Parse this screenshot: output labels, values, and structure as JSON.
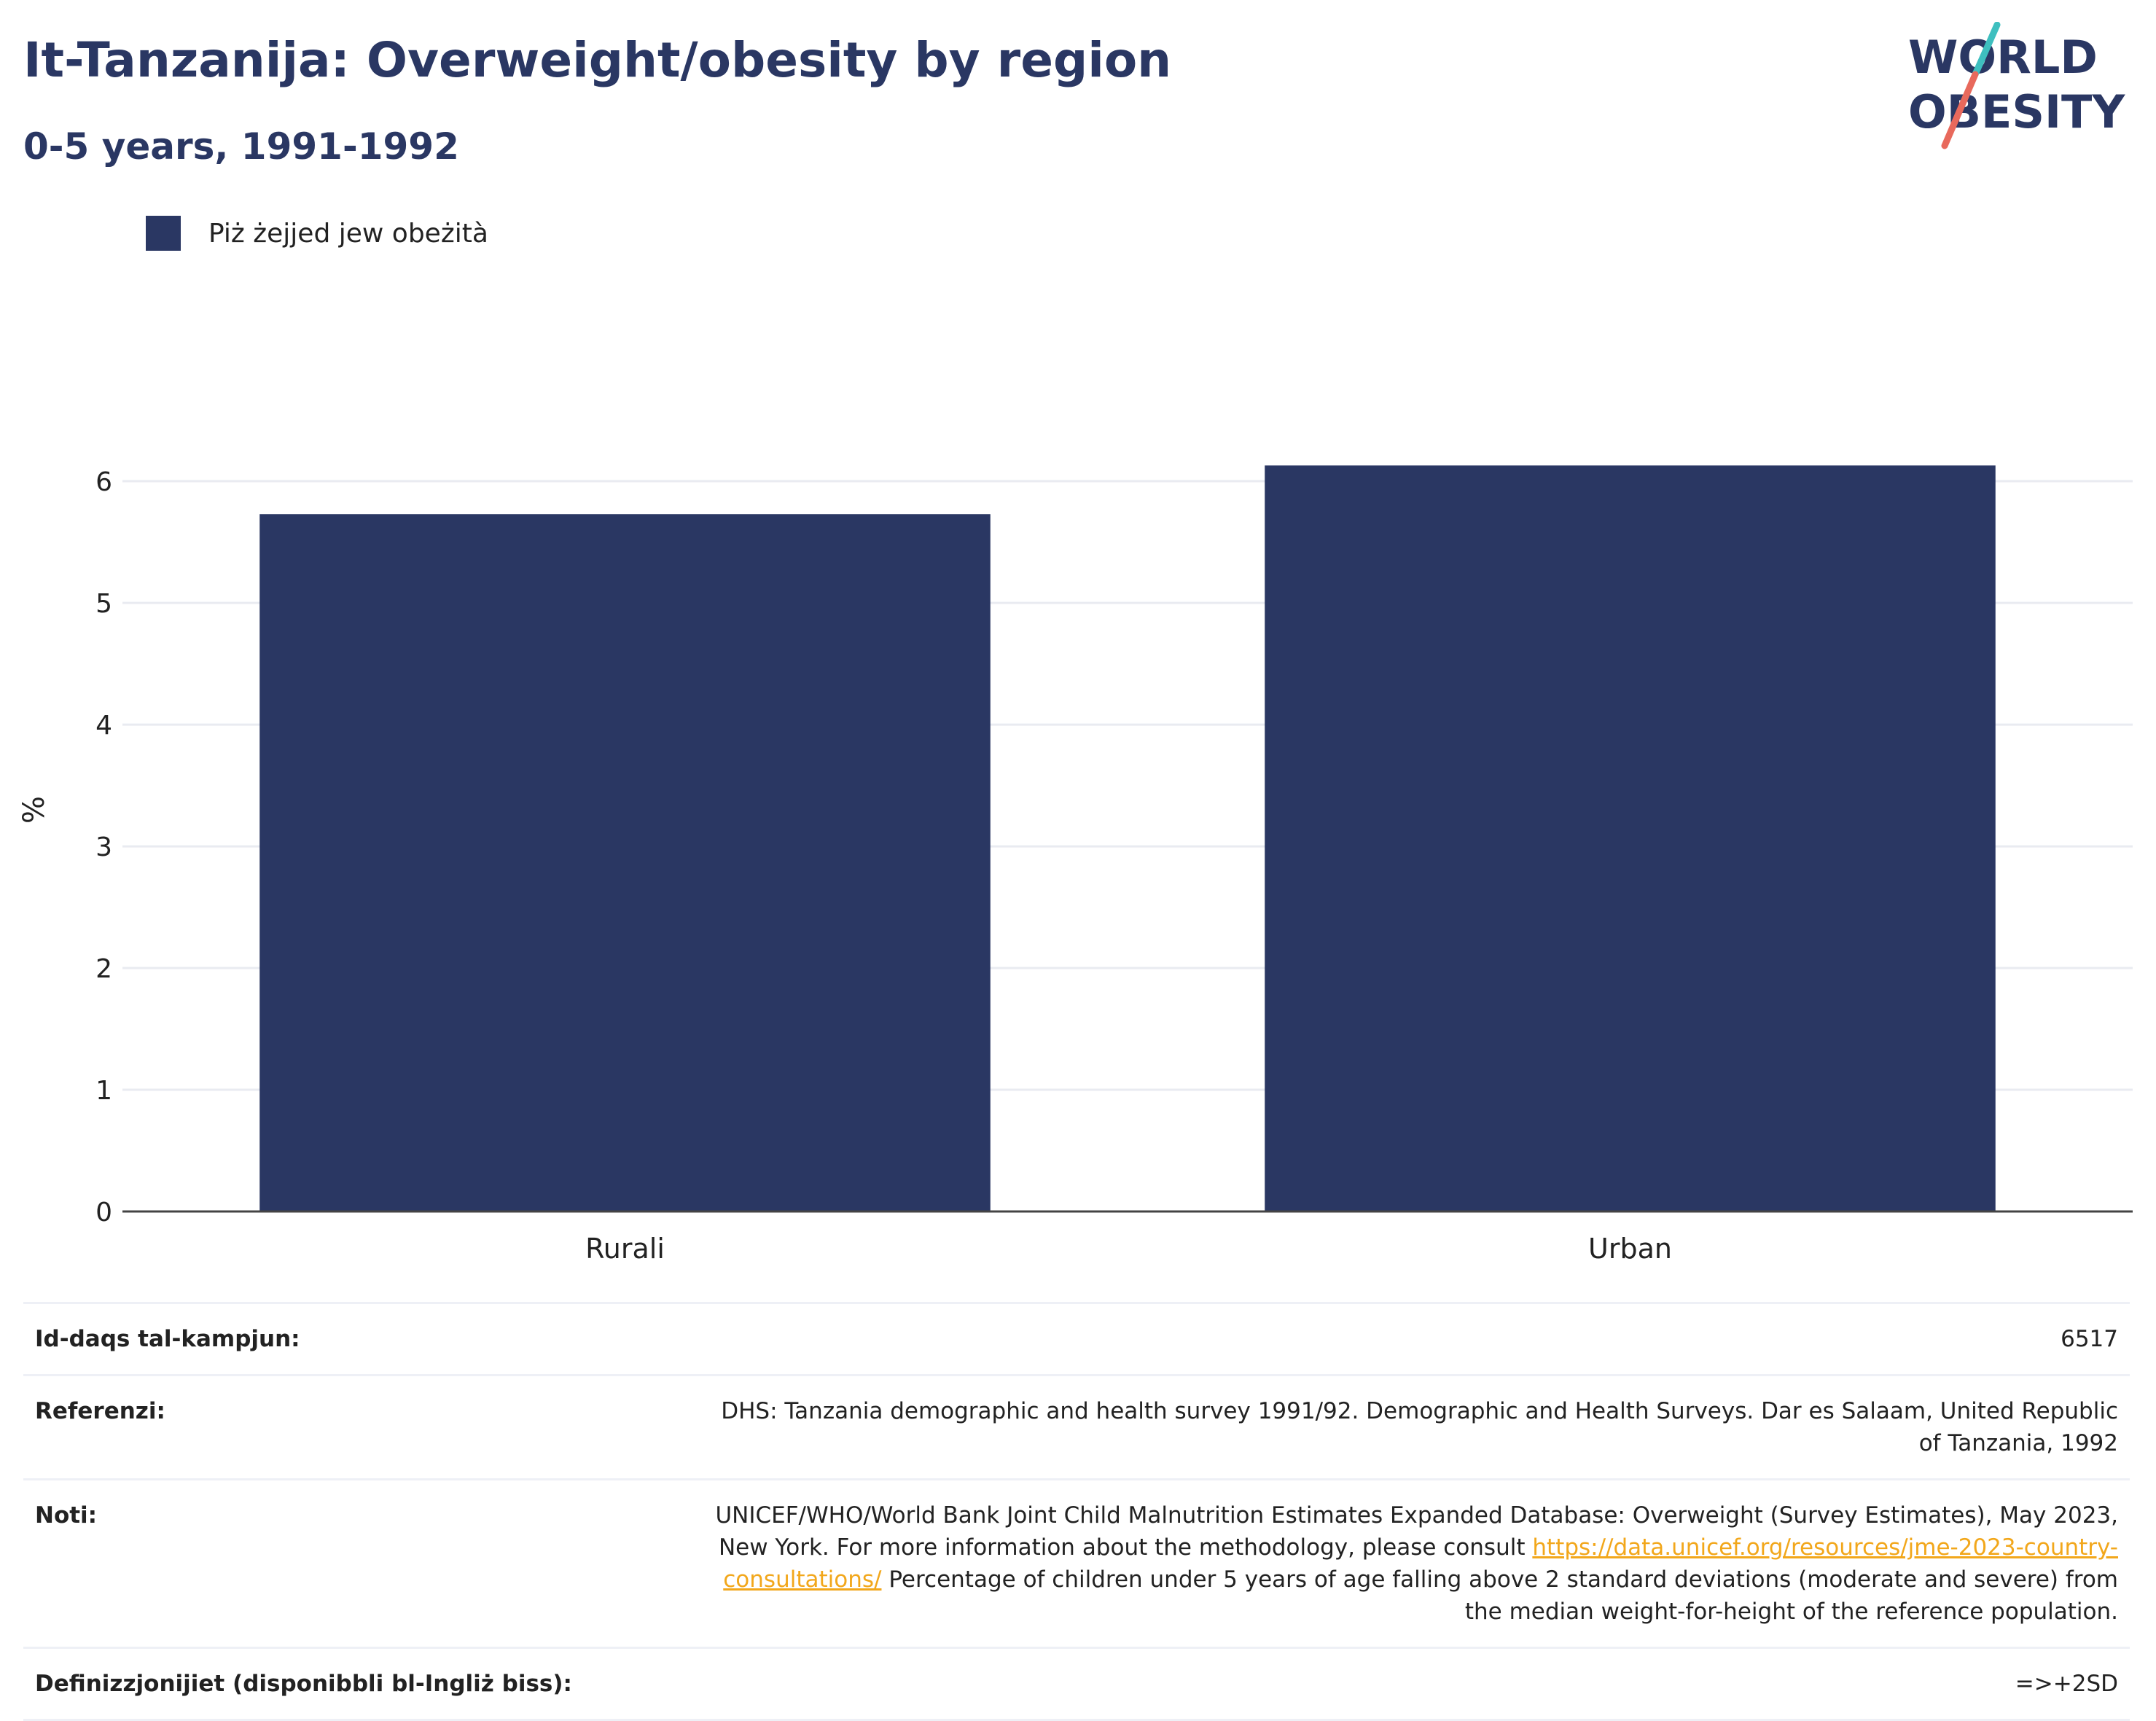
{
  "header": {
    "title": "It-Tanzanija: Overweight/obesity by region",
    "subtitle": "0-5 years, 1991-1992"
  },
  "logo": {
    "line1": "WORLD",
    "line2": "OBESITY",
    "colors": {
      "text": "#2a3763",
      "slash_top": "#3ebfbf",
      "slash_bottom": "#e8695c"
    }
  },
  "legend": {
    "items": [
      {
        "label": "Piż żejjed jew obeżità",
        "color": "#2a3763"
      }
    ]
  },
  "chart_data": {
    "type": "bar",
    "categories": [
      "Rurali",
      "Urban"
    ],
    "series": [
      {
        "name": "Piż żejjed jew obeżità",
        "values": [
          5.73,
          6.13
        ],
        "color": "#2a3763"
      }
    ],
    "title": "It-Tanzanija: Overweight/obesity by region",
    "subtitle": "0-5 years, 1991-1992",
    "xlabel": "",
    "ylabel": "%",
    "ylim": [
      0,
      6.6
    ],
    "yticks": [
      0,
      1,
      2,
      3,
      4,
      5,
      6
    ],
    "grid": true,
    "legend_position": "top-left"
  },
  "info": {
    "sample_size": {
      "label": "Id-daqs tal-kampjun:",
      "value": "6517"
    },
    "references": {
      "label": "Referenzi:",
      "value": "DHS: Tanzania demographic and health survey 1991/92. Demographic and Health Surveys. Dar es Salaam, United Republic of Tanzania, 1992"
    },
    "notes": {
      "label": "Noti:",
      "text_before": "UNICEF/WHO/World Bank Joint Child Malnutrition Estimates Expanded Database: Overweight (Survey Estimates), May 2023, New York. For more information about the methodology, please consult ",
      "link": "https://data.unicef.org/resources/jme-2023-country-consultations/",
      "text_after": " Percentage of children under 5 years of age falling above 2 standard deviations (moderate and severe) from the median weight-for-height of the reference population."
    },
    "definitions": {
      "label": "Definizzjonijiet (disponibbli bl-Ingliż biss):",
      "value": "=>+2SD"
    }
  }
}
